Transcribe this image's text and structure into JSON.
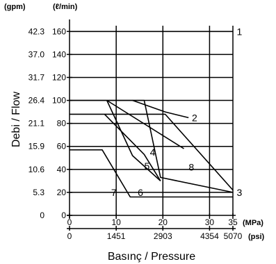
{
  "chart_data": {
    "type": "line",
    "ylabel": "Debi / Flow",
    "xlabel_parts": [
      "Basınç",
      " / Pressure"
    ],
    "y_unit_left": "(gpm)",
    "y_unit_right": "(ℓ/min)",
    "x_unit_top": "(MPa)",
    "x_unit_bottom": "(psi)",
    "xlim": [
      0,
      35
    ],
    "ylim": [
      0,
      165
    ],
    "grid": true,
    "x_ticks_mpa": [
      {
        "value": 0,
        "label": "0"
      },
      {
        "value": 10,
        "label": "10"
      },
      {
        "value": 20,
        "label": "20"
      },
      {
        "value": 30,
        "label": "30"
      },
      {
        "value": 35,
        "label": "35"
      }
    ],
    "x_ticks_psi": [
      {
        "value": 0,
        "label": "0"
      },
      {
        "value": 10,
        "label": "1451"
      },
      {
        "value": 20,
        "label": "2903"
      },
      {
        "value": 30,
        "label": "4354"
      },
      {
        "value": 35,
        "label": "5070"
      }
    ],
    "y_ticks_lmin": [
      {
        "value": 0,
        "label": "0"
      },
      {
        "value": 20,
        "label": "20"
      },
      {
        "value": 40,
        "label": "40"
      },
      {
        "value": 60,
        "label": "60"
      },
      {
        "value": 80,
        "label": "80"
      },
      {
        "value": 100,
        "label": "100"
      },
      {
        "value": 120,
        "label": "120"
      },
      {
        "value": 140,
        "label": "140"
      },
      {
        "value": 160,
        "label": "160"
      }
    ],
    "y_ticks_gpm": [
      {
        "value": 0,
        "label": "0"
      },
      {
        "value": 20,
        "label": "5.3"
      },
      {
        "value": 40,
        "label": "10.6"
      },
      {
        "value": 60,
        "label": "15.9"
      },
      {
        "value": 80,
        "label": "21.1"
      },
      {
        "value": 100,
        "label": "26.4"
      },
      {
        "value": 120,
        "label": "31.7"
      },
      {
        "value": 140,
        "label": "37.0"
      },
      {
        "value": 160,
        "label": "42.3"
      }
    ],
    "series": [
      {
        "name": "1",
        "x": [
          0,
          35
        ],
        "y": [
          160,
          160
        ]
      },
      {
        "name": "2",
        "x": [
          13.5,
          20.5,
          25.5
        ],
        "y": [
          100,
          90,
          85
        ]
      },
      {
        "name": "3",
        "x": [
          0,
          20.5,
          35
        ],
        "y": [
          88,
          88,
          22
        ]
      },
      {
        "name": "4",
        "x": [
          8,
          24.5
        ],
        "y": [
          100,
          58
        ]
      },
      {
        "name": "5",
        "x": [
          8,
          13.5,
          19.5
        ],
        "y": [
          100,
          52,
          30
        ]
      },
      {
        "name": "6",
        "x": [
          7.5,
          16,
          19.5
        ],
        "y": [
          88,
          53,
          30
        ]
      },
      {
        "name": "7",
        "x": [
          0,
          7,
          13,
          35
        ],
        "y": [
          57,
          57,
          16,
          16
        ]
      },
      {
        "name": "8",
        "x": [
          0,
          16,
          19.5,
          35
        ],
        "y": [
          100,
          100,
          33,
          20
        ]
      }
    ],
    "series_labels": [
      {
        "text": "1",
        "x": 36.4,
        "y": 160
      },
      {
        "text": "2",
        "x": 26.8,
        "y": 85
      },
      {
        "text": "3",
        "x": 36.4,
        "y": 20
      },
      {
        "text": "4",
        "x": 17.8,
        "y": 55
      },
      {
        "text": "5",
        "x": 16.6,
        "y": 43
      },
      {
        "text": "6",
        "x": 15.2,
        "y": 20
      },
      {
        "text": "7",
        "x": 9.5,
        "y": 20
      },
      {
        "text": "8",
        "x": 26.1,
        "y": 42
      }
    ]
  }
}
